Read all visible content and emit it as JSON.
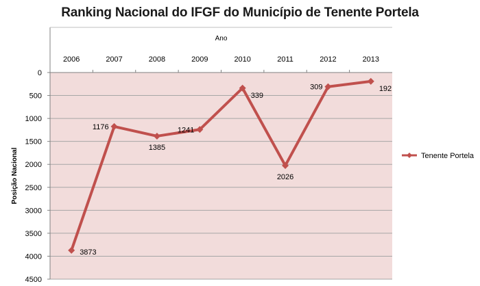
{
  "chart_data": {
    "type": "line",
    "title": "Ranking Nacional do IFGF do Município de Tenente Portela",
    "xlabel": "Ano",
    "ylabel": "Posição Nacional",
    "x": [
      "2006",
      "2007",
      "2008",
      "2009",
      "2010",
      "2011",
      "2012",
      "2013"
    ],
    "series": [
      {
        "name": "Tenente Portela",
        "values": [
          3873,
          1176,
          1385,
          1241,
          339,
          2026,
          309,
          192
        ]
      }
    ],
    "y_ticks": [
      0,
      500,
      1000,
      1500,
      2000,
      2500,
      3000,
      3500,
      4000,
      4500
    ],
    "ylim": [
      0,
      4500
    ],
    "y_axis_reversed": true,
    "x_axis_position": "top",
    "grid": "horizontal",
    "legend_position": "right",
    "colors": {
      "series": "#c0504d",
      "plot_background": "#f2dcdb",
      "gridline": "#a6a6a6"
    }
  }
}
